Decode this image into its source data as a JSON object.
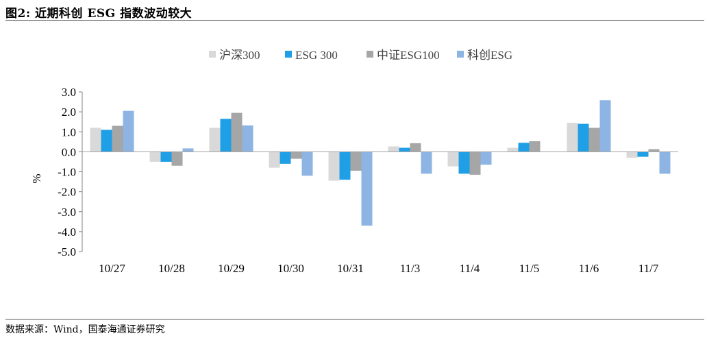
{
  "figure": {
    "title": "图2:  近期科创 ESG 指数波动较大",
    "source": "数据来源：Wind，国泰海通证券研究"
  },
  "chart_data": {
    "type": "bar",
    "categories": [
      "10/27",
      "10/28",
      "10/29",
      "10/30",
      "10/31",
      "11/3",
      "11/4",
      "11/5",
      "11/6",
      "11/7"
    ],
    "series": [
      {
        "name": "沪深300",
        "color": "#d9d9d9",
        "values": [
          1.2,
          -0.5,
          1.2,
          -0.8,
          -1.45,
          0.27,
          -0.73,
          0.2,
          1.45,
          -0.3
        ]
      },
      {
        "name": "ESG 300",
        "color": "#1f9fe6",
        "values": [
          1.1,
          -0.5,
          1.65,
          -0.6,
          -1.4,
          0.2,
          -1.1,
          0.45,
          1.4,
          -0.25
        ]
      },
      {
        "name": "中证ESG100",
        "color": "#a6a6a6",
        "values": [
          1.3,
          -0.7,
          1.95,
          -0.35,
          -0.95,
          0.43,
          -1.15,
          0.53,
          1.2,
          0.13
        ]
      },
      {
        "name": "科创ESG",
        "color": "#8eb4e3",
        "values": [
          2.05,
          0.17,
          1.32,
          -1.2,
          -3.7,
          -1.1,
          -0.65,
          0.0,
          2.58,
          -1.1
        ]
      }
    ],
    "ylabel": "%",
    "ylim": [
      -5.0,
      3.0
    ],
    "yticks": [
      "3.0",
      "2.0",
      "1.0",
      "0.0",
      "-1.0",
      "-2.0",
      "-3.0",
      "-4.0",
      "-5.0"
    ],
    "grid": false,
    "legend_position": "top"
  }
}
